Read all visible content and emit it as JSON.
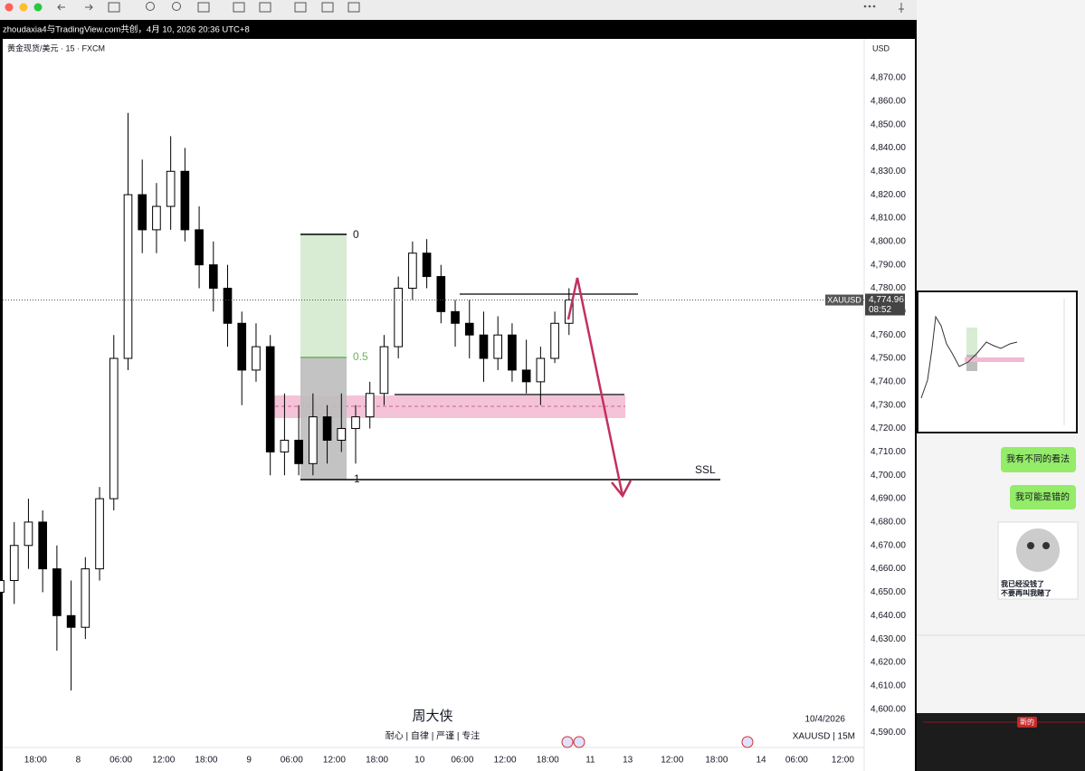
{
  "window": {
    "title": "zhoudaxia4与TradingView.com共创，4月 10, 2026 20:36 UTC+8"
  },
  "chart_data": {
    "type": "candlestick",
    "title": "黄金现货/美元 · 15 · FXCM",
    "y_axis_label": "USD",
    "x": [
      -20,
      -12,
      -4,
      4,
      12,
      20,
      28,
      36,
      44,
      52,
      60,
      68,
      76,
      84,
      92,
      100,
      108,
      116,
      124,
      132,
      140,
      148,
      156,
      164,
      172,
      180,
      188,
      196,
      204,
      212,
      220,
      228,
      236,
      244,
      252,
      260,
      268,
      276,
      284,
      292,
      300
    ],
    "open": [
      4650,
      4655,
      4670,
      4680,
      4660,
      4640,
      4635,
      4660,
      4690,
      4750,
      4820,
      4805,
      4815,
      4830,
      4805,
      4790,
      4780,
      4765,
      4745,
      4755,
      4710,
      4715,
      4705,
      4725,
      4715,
      4720,
      4725,
      4735,
      4755,
      4780,
      4795,
      4785,
      4770,
      4765,
      4760,
      4750,
      4760,
      4745,
      4740,
      4750,
      4765
    ],
    "high": [
      4665,
      4680,
      4690,
      4685,
      4670,
      4655,
      4665,
      4695,
      4760,
      4855,
      4835,
      4825,
      4845,
      4840,
      4815,
      4800,
      4790,
      4770,
      4765,
      4760,
      4735,
      4730,
      4735,
      4730,
      4735,
      4730,
      4740,
      4760,
      4785,
      4800,
      4801,
      4790,
      4775,
      4775,
      4770,
      4768,
      4765,
      4758,
      4755,
      4770,
      4780
    ],
    "low": [
      4630,
      4645,
      4660,
      4650,
      4625,
      4608,
      4630,
      4655,
      4685,
      4745,
      4795,
      4795,
      4805,
      4800,
      4780,
      4770,
      4755,
      4730,
      4740,
      4700,
      4700,
      4700,
      4700,
      4705,
      4710,
      4705,
      4720,
      4730,
      4750,
      4775,
      4780,
      4765,
      4755,
      4750,
      4740,
      4745,
      4740,
      4735,
      4730,
      4748,
      4760
    ],
    "close": [
      4655,
      4670,
      4680,
      4660,
      4640,
      4635,
      4660,
      4690,
      4750,
      4820,
      4805,
      4815,
      4830,
      4805,
      4790,
      4780,
      4765,
      4745,
      4755,
      4710,
      4715,
      4705,
      4725,
      4715,
      4720,
      4725,
      4735,
      4755,
      4780,
      4795,
      4785,
      4770,
      4765,
      4760,
      4750,
      4760,
      4745,
      4740,
      4750,
      4765,
      4775
    ],
    "up_color": "#ffffff",
    "down_color": "#000000",
    "xlim": [
      -20,
      466
    ],
    "ylim": [
      4584,
      4887
    ],
    "xticks": [
      {
        "value": 0,
        "label": "18:00"
      },
      {
        "value": 24,
        "label": "8"
      },
      {
        "value": 48,
        "label": "06:00"
      },
      {
        "value": 72,
        "label": "12:00"
      },
      {
        "value": 96,
        "label": "18:00"
      },
      {
        "value": 120,
        "label": "9"
      },
      {
        "value": 144,
        "label": "06:00"
      },
      {
        "value": 168,
        "label": "12:00"
      },
      {
        "value": 192,
        "label": "18:00"
      },
      {
        "value": 216,
        "label": "10"
      },
      {
        "value": 240,
        "label": "06:00"
      },
      {
        "value": 264,
        "label": "12:00"
      },
      {
        "value": 288,
        "label": "18:00"
      },
      {
        "value": 312,
        "label": "11"
      },
      {
        "value": 333,
        "label": "13"
      },
      {
        "value": 358,
        "label": "12:00"
      },
      {
        "value": 383,
        "label": "18:00"
      },
      {
        "value": 408,
        "label": "14"
      },
      {
        "value": 428,
        "label": "06:00"
      },
      {
        "value": 454,
        "label": "12:00"
      }
    ],
    "yticks": [
      {
        "value": 4590,
        "label": "4,590.00"
      },
      {
        "value": 4600,
        "label": "4,600.00"
      },
      {
        "value": 4610,
        "label": "4,610.00"
      },
      {
        "value": 4620,
        "label": "4,620.00"
      },
      {
        "value": 4630,
        "label": "4,630.00"
      },
      {
        "value": 4640,
        "label": "4,640.00"
      },
      {
        "value": 4650,
        "label": "4,650.00"
      },
      {
        "value": 4660,
        "label": "4,660.00"
      },
      {
        "value": 4670,
        "label": "4,670.00"
      },
      {
        "value": 4680,
        "label": "4,680.00"
      },
      {
        "value": 4690,
        "label": "4,690.00"
      },
      {
        "value": 4700,
        "label": "4,700.00"
      },
      {
        "value": 4710,
        "label": "4,710.00"
      },
      {
        "value": 4720,
        "label": "4,720.00"
      },
      {
        "value": 4730,
        "label": "4,730.00"
      },
      {
        "value": 4740,
        "label": "4,740.00"
      },
      {
        "value": 4750,
        "label": "4,750.00"
      },
      {
        "value": 4760,
        "label": "4,760.00"
      },
      {
        "value": 4770,
        "label": "4,770.00"
      },
      {
        "value": 4780,
        "label": "4,780.00"
      },
      {
        "value": 4790,
        "label": "4,790.00"
      },
      {
        "value": 4800,
        "label": "4,800.00"
      },
      {
        "value": 4810,
        "label": "4,810.00"
      },
      {
        "value": 4820,
        "label": "4,820.00"
      },
      {
        "value": 4830,
        "label": "4,830.00"
      },
      {
        "value": 4840,
        "label": "4,840.00"
      },
      {
        "value": 4850,
        "label": "4,850.00"
      },
      {
        "value": 4860,
        "label": "4,860.00"
      },
      {
        "value": 4870,
        "label": "4,870.00"
      }
    ],
    "last_price": {
      "value": 4774.96,
      "label": "4,774.96"
    },
    "symbol": "XAUUSD",
    "countdown": "08:52",
    "fib_labels": [
      "0",
      "0.5",
      "1"
    ],
    "level_label": "SSL",
    "watermark": {
      "name": "周大侠",
      "motto": "耐心 | 自律 | 严谨 | 专注",
      "date": "10/4/2026",
      "symbol": "XAUUSD | 15M"
    }
  },
  "chat": {
    "messages": [
      "我有不同的看法",
      "我可能是错的"
    ],
    "meme": [
      "我已经没钱了",
      "不要再叫我赌了"
    ],
    "badge": "新的"
  }
}
